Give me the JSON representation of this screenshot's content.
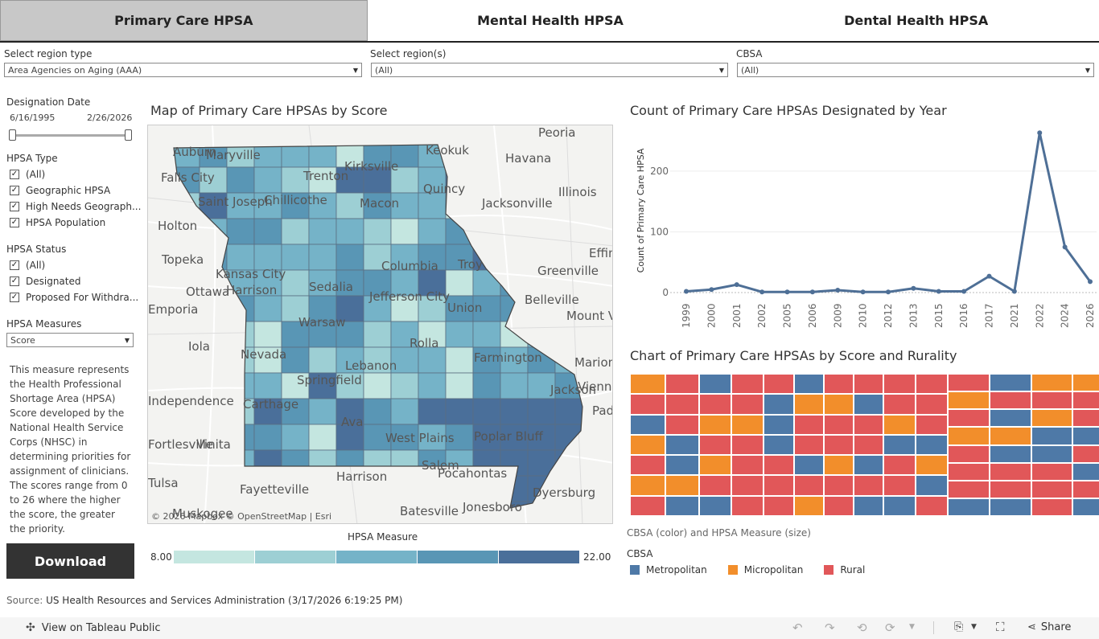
{
  "tabs": [
    {
      "label": "Primary Care HPSA"
    },
    {
      "label": "Mental Health HPSA"
    },
    {
      "label": "Dental Health HPSA"
    }
  ],
  "filters": {
    "region_type": {
      "label": "Select region type",
      "value": "Area Agencies on Aging (AAA)"
    },
    "regions": {
      "label": "Select region(s)",
      "value": "(All)"
    },
    "cbsa": {
      "label": "CBSA",
      "value": "(All)"
    }
  },
  "sidebar": {
    "designation_date": {
      "label": "Designation Date",
      "start": "6/16/1995",
      "end": "2/26/2026"
    },
    "hpsa_type": {
      "label": "HPSA Type",
      "items": [
        "(All)",
        "Geographic HPSA",
        "High Needs Geograph...",
        "HPSA Population"
      ]
    },
    "hpsa_status": {
      "label": "HPSA Status",
      "items": [
        "(All)",
        "Designated",
        "Proposed For Withdra..."
      ]
    },
    "hpsa_measures": {
      "label": "HPSA Measures",
      "value": "Score"
    },
    "description": "This measure represents the Health Professional Shortage Area (HPSA) Score developed by the National Health Service Corps (NHSC) in determining priorities for assignment of clinicians. The scores range from 0 to 26 where the higher the score, the greater the priority.",
    "download_label": "Download"
  },
  "map": {
    "title": "Map of Primary Care HPSAs by Score",
    "attribution": "© 2026 Mapbox  © OpenStreetMap | Esri",
    "legend_title": "HPSA Measure",
    "legend_min": "8.00",
    "legend_max": "22.00",
    "colors": [
      "#c4e6e0",
      "#9dcfd4",
      "#75b3c8",
      "#5996b5",
      "#4a6f9a"
    ],
    "places": [
      "Peoria",
      "Keokuk",
      "Havana",
      "Auburn",
      "Maryville",
      "Falls City",
      "Trenton",
      "Kirksville",
      "Quincy",
      "Jacksonville",
      "Illinois",
      "Saint Joseph",
      "Chillicothe",
      "Macon",
      "Holton",
      "Topeka",
      "Kansas City",
      "Harrison",
      "Ottawa",
      "Effin",
      "Greenville",
      "Belleville",
      "Sedalia",
      "Columbia",
      "Jefferson City",
      "Troy",
      "Union",
      "Mount Ver",
      "Warsaw",
      "Rolla",
      "Iola",
      "Nevada",
      "Lebanon",
      "Farmington",
      "Marion",
      "Carthage",
      "Springfield",
      "Jackson",
      "Vienna",
      "Vinita",
      "Ava",
      "Poplar Bluff",
      "West Plains",
      "Salem",
      "Tulsa",
      "Fayetteville",
      "Harrison",
      "Pocahontas",
      "Dyersburg",
      "Batesville",
      "Jonesboro",
      "Muskogee",
      "Independence",
      "Fortlesville",
      "Padu",
      "Emporia"
    ]
  },
  "line_chart": {
    "title": "Count of Primary Care HPSAs Designated by Year",
    "ylabel": "Count of Primary Care HPSA",
    "yticks": [
      "0",
      "100",
      "200"
    ]
  },
  "treemap": {
    "title": "Chart of Primary Care HPSAs by Score and Rurality",
    "caption": "CBSA (color) and HPSA Measure (size)",
    "legend_title": "CBSA",
    "legend": [
      {
        "label": "Metropolitan",
        "color": "#4e79a7"
      },
      {
        "label": "Micropolitan",
        "color": "#f28e2b"
      },
      {
        "label": "Rural",
        "color": "#e15759"
      }
    ]
  },
  "chart_data": {
    "type": "line",
    "x": [
      "1999",
      "2000",
      "2001",
      "2002",
      "2005",
      "2006",
      "2009",
      "2010",
      "2012",
      "2013",
      "2015",
      "2016",
      "2017",
      "2021",
      "2022",
      "2024",
      "2026"
    ],
    "values": [
      2,
      5,
      13,
      1,
      1,
      1,
      4,
      1,
      1,
      7,
      2,
      2,
      27,
      2,
      263,
      75,
      18
    ],
    "ylabel": "Count of Primary Care HPSA",
    "ylim": [
      0,
      270
    ],
    "grid": true
  },
  "source": {
    "label": "Source:",
    "text": "US Health Resources and Services Administration (3/17/2026 6:19:25 PM)"
  },
  "footer": {
    "view_label": "View on Tableau Public",
    "share_label": "Share"
  }
}
